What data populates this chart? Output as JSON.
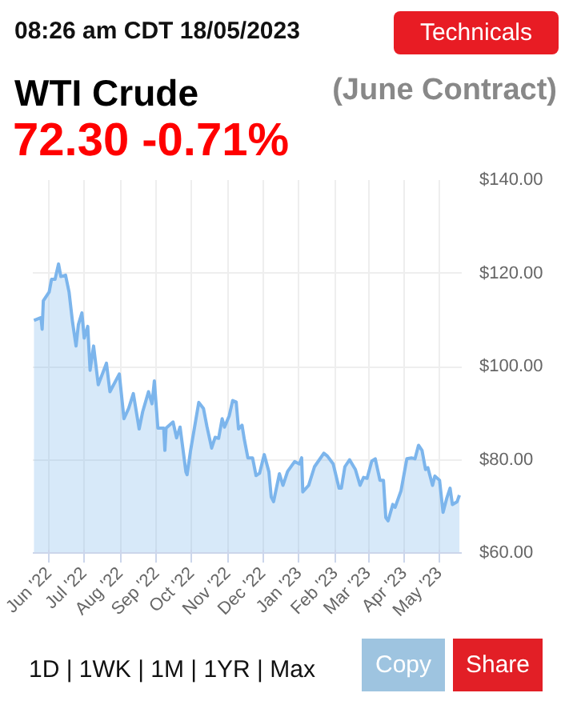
{
  "chart_data": {
    "type": "area",
    "title": "WTI Crude",
    "subtitle": "(June Contract)",
    "annotations": [
      "08:26 am CDT 18/05/2023",
      "72.30 -0.71%",
      "Technicals",
      "1D | 1WK | 1M | 1YR | Max",
      "Copy",
      "Share"
    ],
    "x": [
      "2022-05-19",
      "2022-05-25",
      "2022-05-26",
      "2022-05-27",
      "2022-06-01",
      "2022-06-03",
      "2022-06-06",
      "2022-06-09",
      "2022-06-11",
      "2022-06-15",
      "2022-06-18",
      "2022-06-21",
      "2022-06-24",
      "2022-06-26",
      "2022-06-29",
      "2022-07-01",
      "2022-07-04",
      "2022-07-06",
      "2022-07-09",
      "2022-07-13",
      "2022-07-20",
      "2022-07-23",
      "2022-07-31",
      "2022-08-04",
      "2022-08-08",
      "2022-08-12",
      "2022-08-17",
      "2022-08-20",
      "2022-08-25",
      "2022-08-28",
      "2022-08-30",
      "2022-09-02",
      "2022-09-07",
      "2022-09-08",
      "2022-09-09",
      "2022-09-15",
      "2022-09-18",
      "2022-09-21",
      "2022-09-26",
      "2022-09-27",
      "2022-09-30",
      "2022-10-07",
      "2022-10-11",
      "2022-10-14",
      "2022-10-18",
      "2022-10-21",
      "2022-10-24",
      "2022-10-27",
      "2022-10-29",
      "2022-11-02",
      "2022-11-05",
      "2022-11-08",
      "2022-11-10",
      "2022-11-13",
      "2022-11-15",
      "2022-11-18",
      "2022-11-22",
      "2022-11-25",
      "2022-11-28",
      "2022-12-02",
      "2022-12-06",
      "2022-12-08",
      "2022-12-10",
      "2022-12-15",
      "2022-12-18",
      "2022-12-22",
      "2022-12-26",
      "2022-12-28",
      "2023-01-01",
      "2023-01-03",
      "2023-01-04",
      "2023-01-09",
      "2023-01-14",
      "2023-01-22",
      "2023-01-25",
      "2023-01-30",
      "2023-02-04",
      "2023-02-06",
      "2023-02-09",
      "2023-02-13",
      "2023-02-18",
      "2023-02-22",
      "2023-02-25",
      "2023-02-28",
      "2023-03-04",
      "2023-03-07",
      "2023-03-11",
      "2023-03-14",
      "2023-03-16",
      "2023-03-18",
      "2023-03-22",
      "2023-03-24",
      "2023-03-29",
      "2023-04-03",
      "2023-04-07",
      "2023-04-10",
      "2023-04-13",
      "2023-04-16",
      "2023-04-19",
      "2023-04-21",
      "2023-04-25",
      "2023-04-27",
      "2023-05-01",
      "2023-05-04",
      "2023-05-07",
      "2023-05-10",
      "2023-05-12",
      "2023-05-16",
      "2023-05-18"
    ],
    "series": [
      {
        "color": "#7cb5ec",
        "values": [
          109.9,
          110.5,
          108,
          114.1,
          116,
          118.7,
          118.7,
          122,
          119.3,
          119.6,
          116,
          109.5,
          104.4,
          109,
          111.5,
          106.1,
          108.6,
          99.2,
          104.4,
          96.1,
          100.7,
          94.6,
          98.4,
          88.8,
          91,
          94.2,
          86.6,
          90.3,
          94.6,
          92,
          96.9,
          86.8,
          86.8,
          82,
          86.8,
          88.1,
          84.7,
          87,
          77.4,
          76.8,
          82,
          92.3,
          91,
          87.1,
          82.5,
          84.8,
          84.6,
          88.8,
          87,
          89.4,
          92.7,
          92.4,
          86.6,
          87.4,
          84.3,
          80.4,
          80.4,
          76.6,
          77.1,
          81.1,
          77.4,
          72,
          71,
          77,
          74.5,
          77.5,
          78.9,
          79.6,
          79.1,
          80.4,
          73.1,
          74.5,
          78.5,
          81.4,
          80.8,
          79.1,
          73.9,
          73.9,
          78.5,
          80,
          77.9,
          74.5,
          76.2,
          76,
          79.7,
          80.2,
          75.6,
          75.6,
          67.6,
          66.9,
          70.4,
          69.8,
          73.3,
          80.2,
          80.4,
          80.2,
          83.1,
          82,
          77.9,
          78.3,
          74.5,
          76.5,
          75.6,
          68.7,
          71.6,
          73.9,
          70.4,
          71,
          72.4
        ]
      }
    ],
    "xlim": [
      "2022-05-18",
      "2023-05-20"
    ],
    "ylim": [
      60,
      140
    ],
    "xticks": [
      {
        "value": "2022-06-01",
        "label": "Jun '22"
      },
      {
        "value": "2022-07-01",
        "label": "Jul '22"
      },
      {
        "value": "2022-08-01",
        "label": "Aug '22"
      },
      {
        "value": "2022-09-01",
        "label": "Sep '22"
      },
      {
        "value": "2022-10-01",
        "label": "Oct '22"
      },
      {
        "value": "2022-11-01",
        "label": "Nov '22"
      },
      {
        "value": "2022-12-01",
        "label": "Dec '22"
      },
      {
        "value": "2023-01-01",
        "label": "Jan '23"
      },
      {
        "value": "2023-02-01",
        "label": "Feb '23"
      },
      {
        "value": "2023-03-01",
        "label": "Mar '23"
      },
      {
        "value": "2023-04-01",
        "label": "Apr '23"
      },
      {
        "value": "2023-05-01",
        "label": "May '23"
      }
    ],
    "yticks": [
      {
        "value": 60,
        "label": "$60.00"
      },
      {
        "value": 80,
        "label": "$80.00"
      },
      {
        "value": 100,
        "label": "$100.00"
      },
      {
        "value": 120,
        "label": "$120.00"
      },
      {
        "value": 140,
        "label": "$140.00"
      }
    ],
    "grid": true
  }
}
